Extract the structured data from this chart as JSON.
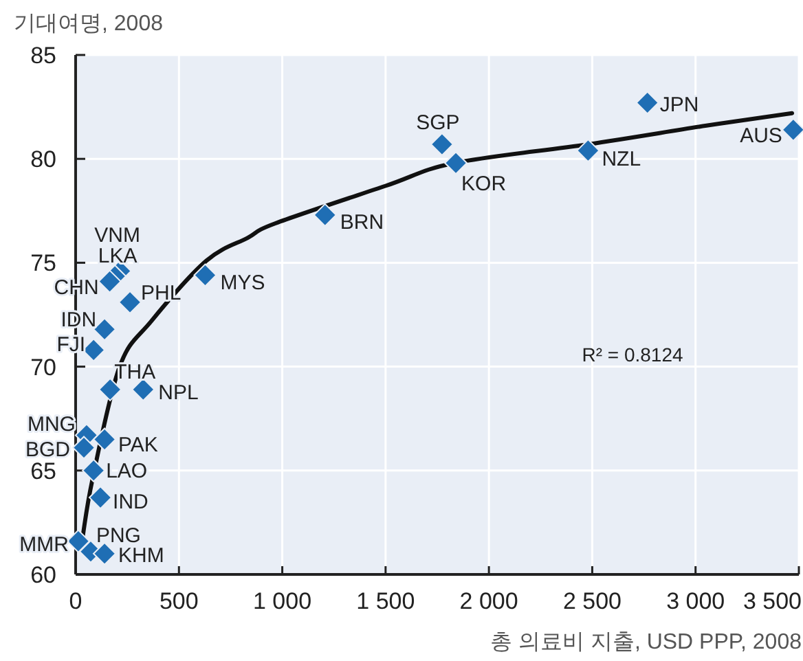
{
  "chart_data": {
    "type": "scatter",
    "ylabel": "기대여명, 2008",
    "xlabel": "총 의료비 지출, USD PPP, 2008",
    "xlim": [
      0,
      3500
    ],
    "ylim": [
      60,
      85
    ],
    "xticks": [
      0,
      500,
      {
        "value": 1000,
        "label": "1 000"
      },
      {
        "value": 1500,
        "label": "1 500"
      },
      {
        "value": 2000,
        "label": "2 000"
      },
      {
        "value": 2500,
        "label": "2 500"
      },
      {
        "value": 3000,
        "label": "3 000"
      },
      {
        "value": 3500,
        "label": "3 500"
      }
    ],
    "yticks": [
      60,
      65,
      70,
      75,
      80,
      85
    ],
    "grid": true,
    "series": [
      {
        "marker": "diamond",
        "color": "#1f6eb4",
        "x": [
          2767,
          3473,
          2480,
          1773,
          1840,
          1207,
          627,
          215,
          190,
          165,
          263,
          140,
          87,
          167,
          327,
          53,
          140,
          40,
          87,
          120,
          13,
          73,
          140
        ],
        "values": [
          82.7,
          81.4,
          80.4,
          80.7,
          79.8,
          77.3,
          74.4,
          74.6,
          74.35,
          74.1,
          73.1,
          71.8,
          70.8,
          68.9,
          68.9,
          66.7,
          66.5,
          66.1,
          65.0,
          63.7,
          61.6,
          61.1,
          61.0
        ]
      },
      {
        "type": "line",
        "marker": "none",
        "color": "#111111",
        "x": [
          27,
          80,
          213,
          367,
          633,
          833,
          967,
          1500,
          1833,
          2480,
          3053,
          3467
        ],
        "values": [
          61.3,
          64.5,
          70.0,
          72.2,
          75.1,
          76.2,
          76.9,
          78.7,
          79.8,
          80.7,
          81.6,
          82.2
        ]
      }
    ],
    "annotations": [
      {
        "text": "JPN",
        "x": 2767,
        "y": 82.7
      },
      {
        "text": "AUS",
        "x": 3473,
        "y": 81.4
      },
      {
        "text": "NZL",
        "x": 2480,
        "y": 80.4
      },
      {
        "text": "SGP",
        "x": 1773,
        "y": 80.7
      },
      {
        "text": "KOR",
        "x": 1840,
        "y": 79.8
      },
      {
        "text": "BRN",
        "x": 1207,
        "y": 77.3
      },
      {
        "text": "MYS",
        "x": 627,
        "y": 74.4
      },
      {
        "text": "VNM",
        "x": 215,
        "y": 74.6
      },
      {
        "text": "LKA",
        "x": 190,
        "y": 74.35
      },
      {
        "text": "CHN",
        "x": 165,
        "y": 74.1
      },
      {
        "text": "PHL",
        "x": 263,
        "y": 73.1
      },
      {
        "text": "IDN",
        "x": 140,
        "y": 71.8
      },
      {
        "text": "FJI",
        "x": 87,
        "y": 70.8
      },
      {
        "text": "THA",
        "x": 167,
        "y": 68.9
      },
      {
        "text": "NPL",
        "x": 327,
        "y": 68.9
      },
      {
        "text": "MNG",
        "x": 53,
        "y": 66.7
      },
      {
        "text": "PAK",
        "x": 140,
        "y": 66.5
      },
      {
        "text": "BGD",
        "x": 40,
        "y": 66.1
      },
      {
        "text": "LAO",
        "x": 87,
        "y": 65.0
      },
      {
        "text": "IND",
        "x": 120,
        "y": 63.7
      },
      {
        "text": "MMR",
        "x": 13,
        "y": 61.6
      },
      {
        "text": "PNG",
        "x": 73,
        "y": 61.1
      },
      {
        "text": "KHM",
        "x": 140,
        "y": 61.0
      },
      "R² = 0.8124"
    ]
  }
}
